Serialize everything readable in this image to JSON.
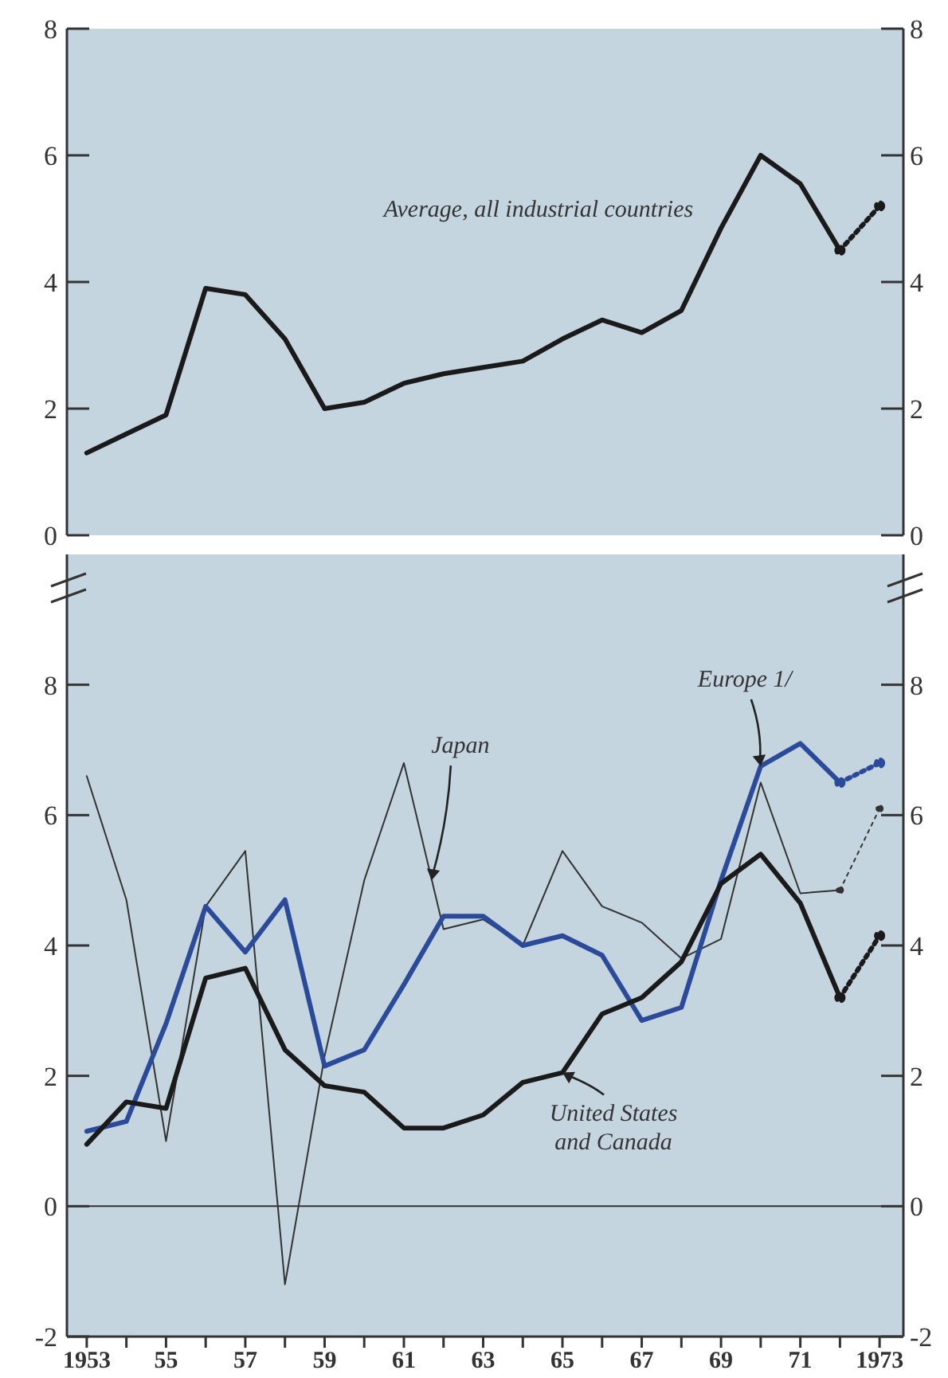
{
  "chart_data": [
    {
      "type": "line",
      "xlim": [
        1952.5,
        1973.6
      ],
      "ylim": [
        0,
        8
      ],
      "yticks": [
        0,
        2,
        4,
        6,
        8
      ],
      "y2lim": [
        0,
        8
      ],
      "y2ticks": [
        0,
        2,
        4,
        6,
        8
      ],
      "tick_labels": "y",
      "grid": false,
      "series": [
        {
          "name": "Average, all industrial countries",
          "color": "#1a1a1a",
          "x": [
            1953,
            1954,
            1955,
            1956,
            1957,
            1958,
            1959,
            1960,
            1961,
            1962,
            1963,
            1964,
            1965,
            1966,
            1967,
            1968,
            1969,
            1970,
            1971,
            1972
          ],
          "values": [
            1.3,
            1.6,
            1.9,
            3.9,
            3.8,
            3.1,
            2.0,
            2.1,
            2.4,
            2.55,
            2.65,
            2.75,
            3.1,
            3.4,
            3.2,
            3.55,
            4.85,
            6.0,
            5.55,
            4.5
          ]
        },
        {
          "color": "#1a1a1a",
          "line_style": "dotted",
          "marker": "circle",
          "x": [
            1972,
            1973
          ],
          "values": [
            4.5,
            5.2
          ]
        }
      ]
    },
    {
      "type": "line",
      "xlim": [
        1952.5,
        1973.6
      ],
      "ylim": [
        -2,
        10
      ],
      "yticks": [
        -2,
        0,
        2,
        4,
        6,
        8
      ],
      "y2lim": [
        -2,
        10
      ],
      "y2ticks": [
        -2,
        0,
        2,
        4,
        6,
        8
      ],
      "xticks": [
        1953,
        {
          "value": 1954,
          "label": null
        },
        {
          "value": 1955,
          "label": "55"
        },
        {
          "value": 1956,
          "label": null
        },
        {
          "value": 1957,
          "label": "57"
        },
        {
          "value": 1958,
          "label": null
        },
        {
          "value": 1959,
          "label": "59"
        },
        {
          "value": 1960,
          "label": null
        },
        {
          "value": 1961,
          "label": "61"
        },
        {
          "value": 1962,
          "label": null
        },
        {
          "value": 1963,
          "label": "63"
        },
        {
          "value": 1964,
          "label": null
        },
        {
          "value": 1965,
          "label": "65"
        },
        {
          "value": 1966,
          "label": null
        },
        {
          "value": 1967,
          "label": "67"
        },
        {
          "value": 1968,
          "label": null
        },
        {
          "value": 1969,
          "label": "69"
        },
        {
          "value": 1970,
          "label": null
        },
        {
          "value": 1971,
          "label": "71"
        },
        {
          "value": 1972,
          "label": null
        },
        1973
      ],
      "grid": false,
      "ref_lines": [
        {
          "axis": "y",
          "value": 0,
          "color": "#333333"
        }
      ],
      "annotations": [
        {
          "text": "Japan",
          "x": 1961.7,
          "y": 5.0
        },
        {
          "text": "Europe 1/",
          "x": 1970,
          "y": 6.75
        },
        {
          "text": "United States and Canada",
          "x": 1965,
          "y": 2.05
        }
      ],
      "series": [
        {
          "color": "#333333",
          "x": [
            1953,
            1954,
            1955,
            1956,
            1957,
            1958,
            1959,
            1960,
            1961,
            1962,
            1963,
            1964,
            1965,
            1966,
            1967,
            1968,
            1969,
            1970,
            1971,
            1972
          ],
          "values": [
            6.6,
            4.7,
            1.0,
            4.6,
            5.45,
            -1.2,
            2.3,
            5.0,
            6.8,
            4.25,
            4.4,
            4.0,
            5.45,
            4.6,
            4.35,
            3.8,
            4.1,
            6.5,
            4.8,
            4.85
          ]
        },
        {
          "color": "#333333",
          "line_style": "dotted",
          "marker": "circle",
          "x": [
            1972,
            1973
          ],
          "values": [
            4.85,
            6.1
          ]
        },
        {
          "color": "#2b4a9a",
          "x": [
            1953,
            1954,
            1955,
            1956,
            1957,
            1958,
            1959,
            1960,
            1961,
            1962,
            1963,
            1964,
            1965,
            1966,
            1967,
            1968,
            1969,
            1970,
            1971,
            1972
          ],
          "values": [
            1.15,
            1.3,
            2.8,
            4.6,
            3.9,
            4.7,
            2.15,
            2.4,
            3.4,
            4.45,
            4.45,
            4.0,
            4.15,
            3.85,
            2.85,
            3.05,
            5.0,
            6.75,
            7.1,
            6.5
          ]
        },
        {
          "color": "#2b4a9a",
          "line_style": "dotted",
          "marker": "circle",
          "x": [
            1972,
            1973
          ],
          "values": [
            6.5,
            6.8
          ]
        },
        {
          "color": "#1a1a1a",
          "x": [
            1953,
            1954,
            1955,
            1956,
            1957,
            1958,
            1959,
            1960,
            1961,
            1962,
            1963,
            1964,
            1965,
            1966,
            1967,
            1968,
            1969,
            1970,
            1971,
            1972
          ],
          "values": [
            0.95,
            1.6,
            1.5,
            3.5,
            3.65,
            2.4,
            1.85,
            1.75,
            1.2,
            1.2,
            1.4,
            1.9,
            2.05,
            2.95,
            3.2,
            3.75,
            4.95,
            5.4,
            4.65,
            3.2
          ]
        },
        {
          "color": "#1a1a1a",
          "line_style": "dotted",
          "marker": "circle",
          "x": [
            1972,
            1973
          ],
          "values": [
            3.2,
            4.15
          ]
        }
      ]
    }
  ]
}
